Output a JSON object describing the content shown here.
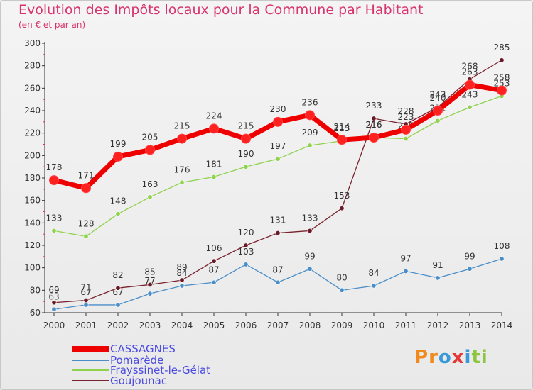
{
  "header": {
    "title": "Evolution des Impôts locaux pour la Commune par Habitant",
    "subtitle": "(en € et par an)"
  },
  "colors": {
    "title": "#d8336e",
    "legend_text": "#4b4be0",
    "axis": "#333333",
    "label": "#333333"
  },
  "chart_data": {
    "type": "line",
    "title": "Evolution des Impôts locaux pour la Commune par Habitant",
    "ylabel": "(en € et par an)",
    "x": [
      "2000",
      "2001",
      "2002",
      "2003",
      "2004",
      "2005",
      "2006",
      "2007",
      "2008",
      "2009",
      "2010",
      "2011",
      "2012",
      "2013",
      "2014"
    ],
    "ylim": [
      60,
      300
    ],
    "yticks": [
      "60",
      "80",
      "100",
      "120",
      "140",
      "160",
      "180",
      "200",
      "220",
      "240",
      "260",
      "280",
      "300"
    ],
    "grid": false,
    "legend": "bottom-left",
    "series": [
      {
        "name": "CASSAGNES",
        "color": "#ee0000",
        "fill": "#ff2020",
        "values": [
          178,
          171,
          199,
          205,
          215,
          224,
          215,
          230,
          236,
          214,
          216,
          223,
          240,
          263,
          258
        ]
      },
      {
        "name": "Pomarède",
        "color": "#4a8ec8",
        "fill": "#4a8ec8",
        "values": [
          63,
          67,
          67,
          77,
          84,
          87,
          103,
          87,
          99,
          80,
          84,
          97,
          91,
          99,
          108
        ]
      },
      {
        "name": "Frayssinet-le-Gélat",
        "color": "#8fd24b",
        "fill": "#8fd24b",
        "values": [
          133,
          128,
          148,
          163,
          176,
          181,
          190,
          197,
          209,
          213,
          216,
          215,
          231,
          243,
          253
        ]
      },
      {
        "name": "Goujounac",
        "color": "#7a2330",
        "fill": "#6a1a24",
        "values": [
          69,
          71,
          82,
          85,
          89,
          106,
          120,
          131,
          133,
          153,
          233,
          228,
          243,
          268,
          285
        ]
      }
    ]
  },
  "legend": [
    {
      "label": "CASSAGNES"
    },
    {
      "label": "Pomarède"
    },
    {
      "label": "Frayssinet-le-Gélat"
    },
    {
      "label": "Goujounac"
    }
  ],
  "logo": {
    "text": "Proxiti"
  }
}
